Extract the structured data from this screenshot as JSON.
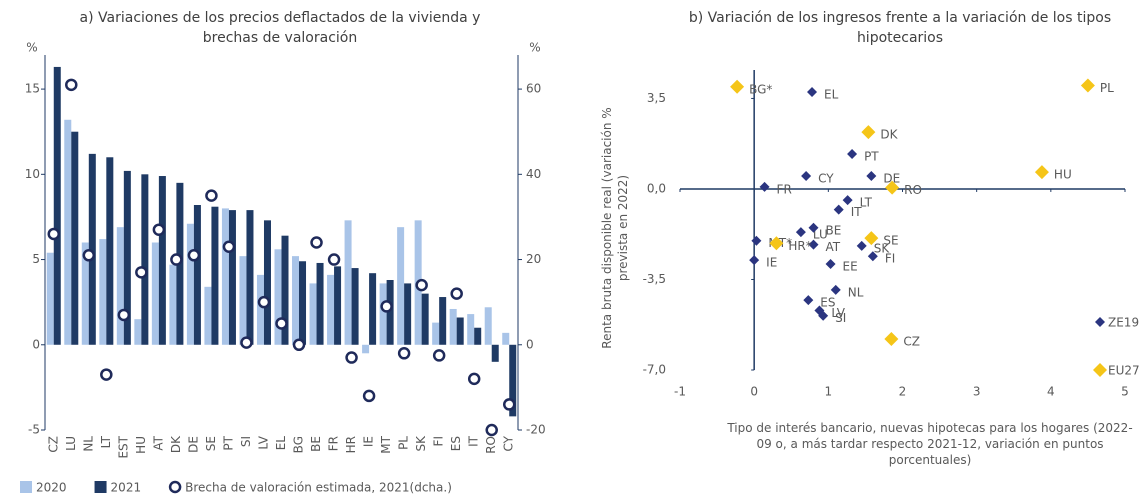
{
  "chart_data": [
    {
      "type": "bar",
      "title": "a) Variaciones de los precios deflactados de la vivienda y brechas de valoración",
      "ylabel": "%",
      "y2label": "%",
      "categories": [
        "CZ",
        "LU",
        "NL",
        "LT",
        "EST",
        "HU",
        "AT",
        "DK",
        "DE",
        "SE",
        "PT",
        "SI",
        "LV",
        "EL",
        "BG",
        "BE",
        "FR",
        "HR",
        "IE",
        "MT",
        "PL",
        "SK",
        "FI",
        "ES",
        "IT",
        "RO",
        "CY"
      ],
      "series": [
        {
          "name": "2020",
          "color": "#a9c4e8",
          "values": [
            5.4,
            13.2,
            6.0,
            6.2,
            6.9,
            1.5,
            6.0,
            4.7,
            7.1,
            3.4,
            8.0,
            5.2,
            4.1,
            5.6,
            5.2,
            3.6,
            4.1,
            7.3,
            -0.5,
            3.6,
            6.9,
            7.3,
            1.3,
            2.1,
            1.8,
            2.2,
            0.7
          ]
        },
        {
          "name": "2021",
          "color": "#1f3a64",
          "values": [
            16.3,
            12.5,
            11.2,
            11.0,
            10.2,
            10.0,
            9.9,
            9.5,
            8.2,
            8.1,
            7.9,
            7.9,
            7.3,
            6.4,
            4.9,
            4.8,
            4.6,
            4.5,
            4.2,
            3.8,
            3.6,
            3.0,
            2.8,
            1.6,
            1.0,
            -1.0,
            -4.2
          ]
        },
        {
          "name": "Brecha de valoración estimada, 2021(dcha.)",
          "color": "#1f2a5a",
          "marker": "circle",
          "axis": "y2",
          "values": [
            26,
            61,
            21,
            -7,
            7,
            17,
            27,
            20,
            21,
            35,
            23,
            0.5,
            10,
            5,
            0,
            24,
            20,
            -3,
            -12,
            9,
            -2,
            14,
            -2.5,
            12,
            -8,
            -20,
            -14
          ]
        }
      ],
      "ylim": [
        -5,
        17
      ],
      "yticks": [
        -5,
        0,
        5,
        10,
        15
      ],
      "y2lim": [
        -20,
        68
      ],
      "y2ticks": [
        -20,
        0,
        20,
        40,
        60
      ]
    },
    {
      "type": "scatter",
      "title": "b) Variación de los ingresos frente a la variación de los tipos hipotecarios",
      "xlabel": "Tipo de interés bancario, nuevas hipotecas para los hogares (2022-09 o, a más tardar respecto 2021-12, variación en puntos porcentuales)",
      "ylabel": "Renta bruta disponible real (variación % prevista en 2022)",
      "series": [
        {
          "name": "ZE19",
          "color": "#2b3580",
          "labels": [
            "EL",
            "PT",
            "CY",
            "DE",
            "FR",
            "LT",
            "IT",
            "LU",
            "BE",
            "AT",
            "MT*",
            "IE",
            "EE",
            "SK",
            "FI",
            "NL",
            "ES",
            "LV",
            "SI"
          ],
          "x": [
            0.78,
            1.32,
            0.7,
            1.58,
            0.14,
            1.26,
            1.14,
            0.63,
            0.8,
            0.8,
            0.03,
            0.0,
            1.03,
            1.45,
            1.6,
            1.1,
            0.73,
            0.88,
            0.93
          ],
          "values": [
            3.75,
            1.35,
            0.5,
            0.5,
            0.08,
            -0.43,
            -0.8,
            -1.67,
            -1.5,
            -2.15,
            -2.0,
            -2.75,
            -2.9,
            -2.2,
            -2.6,
            -3.9,
            -4.3,
            -4.7,
            -4.9
          ]
        },
        {
          "name": "EU27",
          "color": "#f5c518",
          "labels": [
            "BG*",
            "DK",
            "PL",
            "HU",
            "RO",
            "SE",
            "HR*",
            "CZ"
          ],
          "x": [
            -0.23,
            1.54,
            4.5,
            3.88,
            1.86,
            1.58,
            0.3,
            1.85
          ],
          "values": [
            3.95,
            2.2,
            4.0,
            0.65,
            0.05,
            -1.9,
            -2.1,
            -5.8
          ]
        }
      ],
      "xlim": [
        -1,
        5
      ],
      "xticks": [
        -1,
        0,
        1,
        2,
        3,
        4,
        5
      ],
      "ylim": [
        -7,
        4.6
      ],
      "yticks": [
        {
          "value": 3.5,
          "label": "3,5"
        },
        {
          "value": 0,
          "label": "0,0"
        },
        {
          "value": -3.5,
          "label": "-3,5"
        },
        {
          "value": -7,
          "label": "-7,0"
        }
      ],
      "legend": "lower right"
    }
  ]
}
